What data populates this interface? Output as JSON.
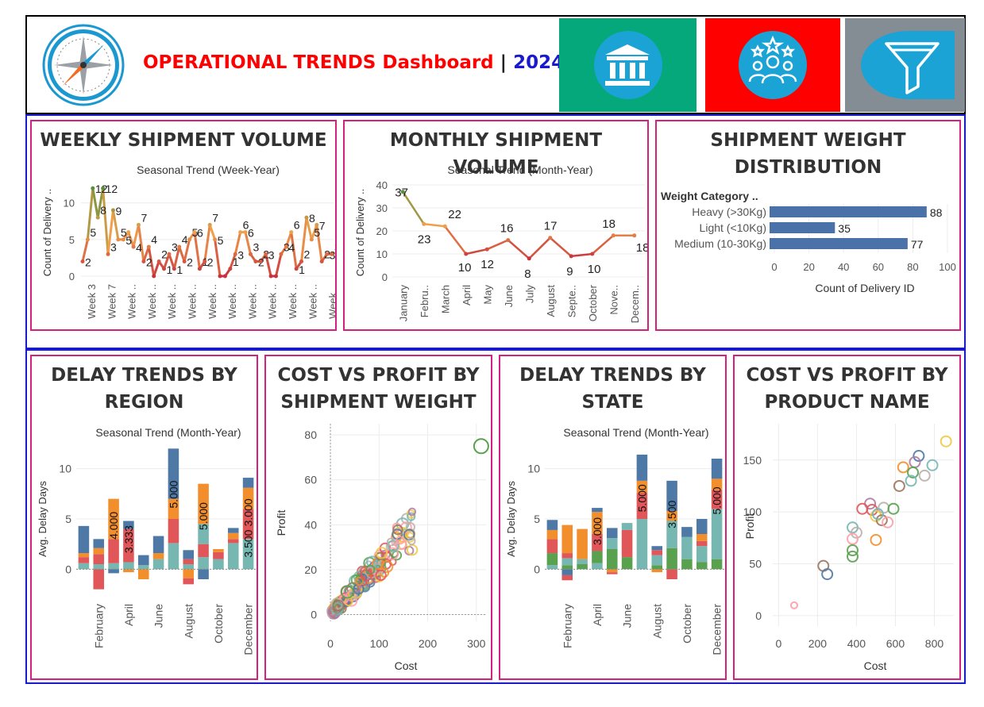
{
  "header": {
    "title_main": "OPERATIONAL TRENDS  Dashboard",
    "title_separator": "|",
    "title_year": "2024",
    "logo_icon": "compass-icon",
    "nav_tiles": [
      {
        "icon": "bank-icon",
        "color": "#05a87b"
      },
      {
        "icon": "team-stars-icon",
        "color": "#ff0000"
      },
      {
        "icon": "filter-icon",
        "color": "#858d94"
      }
    ]
  },
  "colors": {
    "frame_blue": "#1a1acc",
    "panel_border": "#d4217e",
    "bar_blue": "#4a72a8",
    "palette": [
      "#4e79a7",
      "#f28e2b",
      "#e15759",
      "#76b7b2",
      "#59a14f",
      "#edc948",
      "#b07aa1",
      "#ff9da7",
      "#9c755f",
      "#bab0ac"
    ]
  },
  "panels": {
    "weekly": {
      "title": "WEEKLY SHIPMENT VOLUME"
    },
    "monthly": {
      "title": "MONTHLY SHIPMENT VOLUME"
    },
    "weight": {
      "title_line1": "SHIPMENT WEIGHT",
      "title_line2": "DISTRIBUTION"
    },
    "delay_region": {
      "title_line1": "DELAY TRENDS BY",
      "title_line2": "REGION"
    },
    "cost_weight": {
      "title_line1": "COST VS PROFIT BY",
      "title_line2": "SHIPMENT WEIGHT"
    },
    "delay_state": {
      "title_line1": "DELAY TRENDS BY",
      "title_line2": "STATE"
    },
    "cost_product": {
      "title_line1": "COST VS PROFIT BY",
      "title_line2": "PRODUCT NAME"
    }
  },
  "chart_data": [
    {
      "id": "weekly",
      "type": "line",
      "title": "Seasonal Trend (Week-Year)",
      "ylabel": "Count of Delivery ..",
      "ylim": [
        0,
        13
      ],
      "yticks": [
        0,
        5,
        10
      ],
      "x_tick_labels": [
        "Week 3",
        "Week 7",
        "Week ..",
        "Week ..",
        "Week ..",
        "Week ..",
        "Week ..",
        "Week ..",
        "Week ..",
        "Week ..",
        "Week ..",
        "Week ..",
        "Week .."
      ],
      "values": [
        2,
        5,
        12,
        8,
        12,
        3,
        9,
        5,
        5,
        6,
        4,
        7,
        2,
        4,
        0,
        2,
        1,
        3,
        1,
        4,
        2,
        5,
        6,
        1,
        2,
        7,
        5,
        0,
        0,
        1,
        3,
        6,
        6,
        3,
        2,
        2,
        3,
        0,
        0,
        3,
        4,
        6,
        1,
        2,
        8,
        5,
        7,
        2,
        3,
        3
      ],
      "data_labels": [
        "2",
        "5",
        "12",
        "8",
        "12",
        "3",
        "9",
        "5",
        "5",
        "",
        "4",
        "7",
        "2",
        "4",
        "",
        "2",
        "1",
        "3",
        "1",
        "4",
        "2",
        "5",
        "6",
        "1",
        "2",
        "7",
        "5",
        "",
        "",
        "1",
        "3",
        "6",
        "6",
        "3",
        "2",
        "2",
        "3",
        "",
        "",
        "3",
        "4",
        "6",
        "1",
        "2",
        "8",
        "5",
        "7",
        "2",
        "3",
        "3"
      ],
      "colors": {
        "high": "#5a8f3c",
        "mid": "#f0a04b",
        "low": "#c8323d"
      }
    },
    {
      "id": "monthly",
      "type": "line",
      "title": "Seasonal Trend (Month-Year)",
      "ylabel": "Count of Delivery ..",
      "ylim": [
        0,
        40
      ],
      "yticks": [
        0,
        10,
        20,
        30,
        40
      ],
      "categories": [
        "January",
        "Febru..",
        "March",
        "April",
        "May",
        "June",
        "July",
        "August",
        "Septe..",
        "October",
        "Nove..",
        "Decem.."
      ],
      "values": [
        37,
        23,
        22,
        10,
        12,
        16,
        8,
        17,
        9,
        10,
        18,
        18
      ],
      "data_labels": [
        "37",
        "23",
        "22",
        "10",
        "12",
        "16",
        "8",
        "17",
        "9",
        "10",
        "18",
        "18"
      ]
    },
    {
      "id": "weight",
      "type": "bar",
      "orientation": "horizontal",
      "row_header": "Weight Category ..",
      "categories": [
        "Heavy (>30Kg)",
        "Light (<10Kg)",
        "Medium (10-30Kg)"
      ],
      "values": [
        88,
        35,
        77
      ],
      "xlabel": "Count of Delivery ID",
      "xlim": [
        0,
        100
      ],
      "xticks": [
        0,
        20,
        40,
        60,
        80,
        100
      ],
      "bar_color": "#4a72a8"
    },
    {
      "id": "delay_region",
      "type": "bar",
      "stacked": true,
      "title": "Seasonal Trend (Month-Year)",
      "ylabel": "Avg. Delay Days",
      "ylim": [
        -2.5,
        12.5
      ],
      "yticks": [
        0,
        5,
        10
      ],
      "x_tick_labels": [
        "February",
        "April",
        "June",
        "August",
        "October",
        "December"
      ],
      "months": 12,
      "stacks": [
        [
          {
            "v": 0.6,
            "c": 3
          },
          {
            "v": 0.6,
            "c": 2
          },
          {
            "v": 0.4,
            "c": 1
          },
          {
            "v": 2.7,
            "c": 0
          }
        ],
        [
          {
            "v": 0.5,
            "c": 3
          },
          {
            "v": -2,
            "c": 2
          },
          {
            "v": 1.0,
            "c": 2
          },
          {
            "v": 0.6,
            "c": 1
          },
          {
            "v": 0.9,
            "c": 0
          }
        ],
        [
          {
            "v": 0.6,
            "c": 3
          },
          {
            "v": -0.4,
            "c": 0
          },
          {
            "v": 2.4,
            "c": 2
          },
          {
            "v": 4.0,
            "c": 1
          }
        ],
        [
          {
            "v": 0.7,
            "c": 3
          },
          {
            "v": -0.3,
            "c": 1
          },
          {
            "v": 3.3,
            "c": 2
          },
          {
            "v": 0.8,
            "c": 0
          }
        ],
        [
          {
            "v": 0.4,
            "c": 3
          },
          {
            "v": -1.0,
            "c": 1
          },
          {
            "v": 1.0,
            "c": 0
          }
        ],
        [
          {
            "v": 1.0,
            "c": 3
          },
          {
            "v": 0.6,
            "c": 1
          },
          {
            "v": 1.7,
            "c": 0
          }
        ],
        [
          {
            "v": 2.6,
            "c": 3
          },
          {
            "v": 2.4,
            "c": 2
          },
          {
            "v": 2.0,
            "c": 1
          },
          {
            "v": 5.0,
            "c": 0
          }
        ],
        [
          {
            "v": 0.5,
            "c": 3
          },
          {
            "v": -0.9,
            "c": 1
          },
          {
            "v": -0.6,
            "c": 2
          },
          {
            "v": 0.5,
            "c": 2
          },
          {
            "v": 0.9,
            "c": 0
          }
        ],
        [
          {
            "v": -1.0,
            "c": 0
          },
          {
            "v": 1.2,
            "c": 3
          },
          {
            "v": 1.3,
            "c": 2
          },
          {
            "v": 2.0,
            "c": 3
          },
          {
            "v": 2.0,
            "c": 1
          },
          {
            "v": 2.0,
            "c": 1
          }
        ],
        [
          {
            "v": 1.0,
            "c": 3
          },
          {
            "v": 0.7,
            "c": 2
          },
          {
            "v": 0.3,
            "c": 1
          }
        ],
        [
          {
            "v": 2.6,
            "c": 3
          },
          {
            "v": 0.4,
            "c": 2
          },
          {
            "v": 0.6,
            "c": 1
          },
          {
            "v": 0.5,
            "c": 0
          }
        ],
        [
          {
            "v": 3.0,
            "c": 3
          },
          {
            "v": 1.8,
            "c": 2
          },
          {
            "v": 1.2,
            "c": 2
          },
          {
            "v": 2.1,
            "c": 1
          },
          {
            "v": 1.0,
            "c": 0
          }
        ]
      ],
      "data_labels": [
        {
          "month": 2,
          "text": "4.000"
        },
        {
          "month": 3,
          "text": "3.333"
        },
        {
          "month": 6,
          "text": "5.000"
        },
        {
          "month": 8,
          "text": "5.000"
        },
        {
          "month": 11,
          "text": "3.000"
        },
        {
          "month": 11,
          "text": "3.500"
        }
      ]
    },
    {
      "id": "cost_weight",
      "type": "scatter",
      "xlabel": "Cost",
      "ylabel": "Profit",
      "xlim": [
        -5,
        320
      ],
      "ylim": [
        -3,
        85
      ],
      "xticks": [
        0,
        100,
        200,
        300
      ],
      "yticks": [
        0,
        20,
        40,
        60,
        80
      ],
      "outlier": {
        "x": 310,
        "y": 75
      }
    },
    {
      "id": "delay_state",
      "type": "bar",
      "stacked": true,
      "title": "Seasonal Trend (Month-Year)",
      "ylabel": "Avg. Delay Days",
      "ylim": [
        -2.5,
        12.5
      ],
      "yticks": [
        0,
        5,
        10
      ],
      "x_tick_labels": [
        "February",
        "April",
        "June",
        "August",
        "October",
        "December"
      ],
      "months": 12,
      "stacks": [
        [
          {
            "v": 0.4,
            "c": 3
          },
          {
            "v": 1.2,
            "c": 4
          },
          {
            "v": 1.4,
            "c": 2
          },
          {
            "v": 0.9,
            "c": 1
          },
          {
            "v": 1.0,
            "c": 0
          }
        ],
        [
          {
            "v": -0.6,
            "c": 0
          },
          {
            "v": -0.5,
            "c": 2
          },
          {
            "v": 0.4,
            "c": 4
          },
          {
            "v": 0.7,
            "c": 3
          },
          {
            "v": 0.5,
            "c": 2
          },
          {
            "v": 2.8,
            "c": 1
          }
        ],
        [
          {
            "v": 0.5,
            "c": 4
          },
          {
            "v": 0.5,
            "c": 3
          },
          {
            "v": 3.0,
            "c": 1
          }
        ],
        [
          {
            "v": 0.6,
            "c": 3
          },
          {
            "v": 1.2,
            "c": 4
          },
          {
            "v": 1.7,
            "c": 2
          },
          {
            "v": 2.2,
            "c": 1
          },
          {
            "v": 0.4,
            "c": 0
          }
        ],
        [
          {
            "v": -0.3,
            "c": 1
          },
          {
            "v": -0.2,
            "c": 2
          },
          {
            "v": 2.0,
            "c": 4
          },
          {
            "v": 1.1,
            "c": 3
          },
          {
            "v": 1.0,
            "c": 0
          }
        ],
        [
          {
            "v": 1.2,
            "c": 4
          },
          {
            "v": 2.7,
            "c": 2
          },
          {
            "v": 0.7,
            "c": 3
          }
        ],
        [
          {
            "v": 5.0,
            "c": 3
          },
          {
            "v": 2.6,
            "c": 2
          },
          {
            "v": 1.2,
            "c": 1
          },
          {
            "v": 2.6,
            "c": 0
          }
        ],
        [
          {
            "v": -0.3,
            "c": 1
          },
          {
            "v": 0.4,
            "c": 4
          },
          {
            "v": 1.0,
            "c": 3
          },
          {
            "v": 0.5,
            "c": 2
          },
          {
            "v": 0.4,
            "c": 0
          }
        ],
        [
          {
            "v": -1.0,
            "c": 2
          },
          {
            "v": 2.1,
            "c": 4
          },
          {
            "v": 2.7,
            "c": 3
          },
          {
            "v": 1.0,
            "c": 1
          },
          {
            "v": 3.0,
            "c": 0
          }
        ],
        [
          {
            "v": 1.0,
            "c": 4
          },
          {
            "v": 2.2,
            "c": 3
          },
          {
            "v": 1.0,
            "c": 0
          }
        ],
        [
          {
            "v": 0.7,
            "c": 4
          },
          {
            "v": 1.6,
            "c": 3
          },
          {
            "v": 0.5,
            "c": 2
          },
          {
            "v": 0.7,
            "c": 1
          },
          {
            "v": 1.5,
            "c": 0
          }
        ],
        [
          {
            "v": 1.0,
            "c": 4
          },
          {
            "v": 5.0,
            "c": 3
          },
          {
            "v": 1.9,
            "c": 2
          },
          {
            "v": 1.1,
            "c": 1
          },
          {
            "v": 2.0,
            "c": 0
          }
        ]
      ],
      "data_labels": [
        {
          "month": 3,
          "text": "3.000"
        },
        {
          "month": 6,
          "text": "5.000"
        },
        {
          "month": 8,
          "text": "3.500"
        },
        {
          "month": 11,
          "text": "5.000"
        }
      ]
    },
    {
      "id": "cost_product",
      "type": "scatter",
      "xlabel": "Cost",
      "ylabel": "Profit",
      "xlim": [
        -30,
        900
      ],
      "ylim": [
        -10,
        185
      ],
      "xticks": [
        0,
        200,
        400,
        600,
        800
      ],
      "yticks": [
        0,
        50,
        100,
        150
      ],
      "points": [
        {
          "x": 860,
          "y": 168,
          "c": 5
        },
        {
          "x": 720,
          "y": 154,
          "c": 0
        },
        {
          "x": 700,
          "y": 148,
          "c": 6
        },
        {
          "x": 790,
          "y": 145,
          "c": 3
        },
        {
          "x": 640,
          "y": 143,
          "c": 1
        },
        {
          "x": 750,
          "y": 135,
          "c": 9
        },
        {
          "x": 690,
          "y": 138,
          "c": 4
        },
        {
          "x": 680,
          "y": 130,
          "c": 3
        },
        {
          "x": 620,
          "y": 125,
          "c": 8
        },
        {
          "x": 470,
          "y": 108,
          "c": 6
        },
        {
          "x": 430,
          "y": 103,
          "c": 2
        },
        {
          "x": 480,
          "y": 102,
          "c": 2
        },
        {
          "x": 540,
          "y": 104,
          "c": 9
        },
        {
          "x": 590,
          "y": 103,
          "c": 4
        },
        {
          "x": 500,
          "y": 96,
          "c": 5
        },
        {
          "x": 530,
          "y": 92,
          "c": 8
        },
        {
          "x": 560,
          "y": 90,
          "c": 7
        },
        {
          "x": 510,
          "y": 98,
          "c": 3
        },
        {
          "x": 380,
          "y": 85,
          "c": 3
        },
        {
          "x": 400,
          "y": 80,
          "c": 9
        },
        {
          "x": 380,
          "y": 74,
          "c": 7
        },
        {
          "x": 500,
          "y": 73,
          "c": 1
        },
        {
          "x": 380,
          "y": 63,
          "c": 4
        },
        {
          "x": 380,
          "y": 57,
          "c": 4
        },
        {
          "x": 230,
          "y": 48,
          "c": 8
        },
        {
          "x": 250,
          "y": 40,
          "c": 0
        },
        {
          "x": 80,
          "y": 10,
          "c": 7
        }
      ]
    }
  ]
}
